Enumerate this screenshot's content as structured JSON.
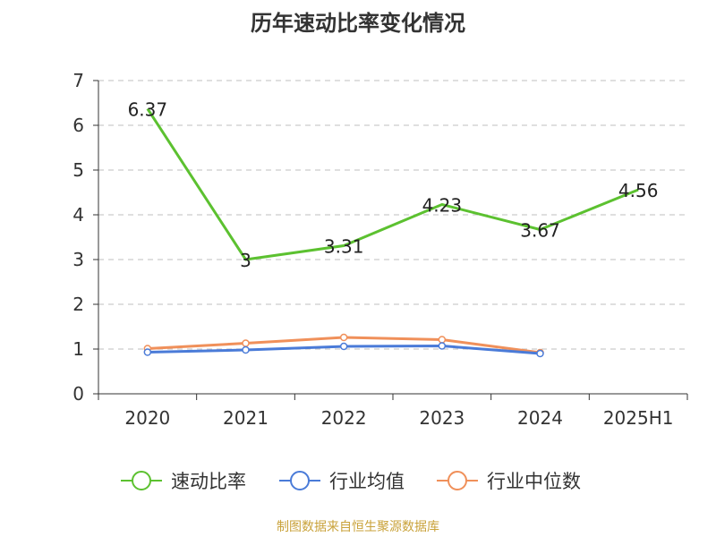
{
  "chart_data": {
    "type": "line",
    "title": "历年速动比率变化情况",
    "categories": [
      "2020",
      "2021",
      "2022",
      "2023",
      "2024",
      "2025H1"
    ],
    "ylim": [
      0,
      7
    ],
    "yticks": [
      "0",
      "1",
      "2",
      "3",
      "4",
      "5",
      "6",
      "7"
    ],
    "grid": true,
    "legend_position": "bottom",
    "series": [
      {
        "name": "速动比率",
        "color": "#5cc130",
        "values": [
          6.37,
          3,
          3.31,
          4.23,
          3.67,
          4.56
        ],
        "labels": [
          "6.37",
          "3",
          "3.31",
          "4.23",
          "3.67",
          "4.56"
        ]
      },
      {
        "name": "行业均值",
        "color": "#4a7bd8",
        "values": [
          0.93,
          0.98,
          1.06,
          1.07,
          0.9,
          null
        ]
      },
      {
        "name": "行业中位数",
        "color": "#f0905a",
        "values": [
          1.01,
          1.13,
          1.26,
          1.21,
          0.92,
          null
        ]
      }
    ],
    "source": "制图数据来自恒生聚源数据库"
  }
}
